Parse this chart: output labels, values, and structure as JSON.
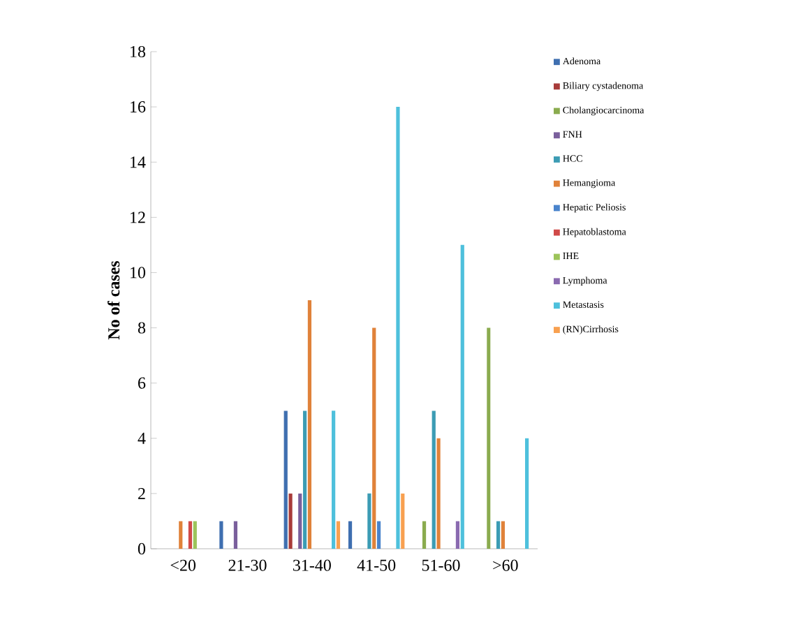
{
  "chart_data": {
    "type": "bar",
    "ylabel": "No of cases",
    "categories": [
      "<20",
      "21-30",
      "31-40",
      "41-50",
      "51-60",
      ">60"
    ],
    "ylim": [
      0,
      18
    ],
    "yticks": [
      0,
      2,
      4,
      6,
      8,
      10,
      12,
      14,
      16,
      18
    ],
    "grid": false,
    "legend": "right",
    "series": [
      {
        "name": "Adenoma",
        "color": "#3f6fb0",
        "values": [
          0,
          1,
          5,
          1,
          0,
          0
        ]
      },
      {
        "name": "Biliary cystadenoma",
        "color": "#a83c3a",
        "values": [
          0,
          0,
          2,
          0,
          0,
          0
        ]
      },
      {
        "name": "Cholangiocarcinoma",
        "color": "#8aab4e",
        "values": [
          0,
          0,
          0,
          0,
          1,
          8
        ]
      },
      {
        "name": "FNH",
        "color": "#7a5f9c",
        "values": [
          0,
          1,
          2,
          0,
          0,
          0
        ]
      },
      {
        "name": "HCC",
        "color": "#3c9cb4",
        "values": [
          0,
          0,
          5,
          2,
          5,
          1
        ]
      },
      {
        "name": "Hemangioma",
        "color": "#e0823a",
        "values": [
          1,
          0,
          9,
          8,
          4,
          1
        ]
      },
      {
        "name": "Hepatic Peliosis",
        "color": "#4a84cc",
        "values": [
          0,
          0,
          0,
          1,
          0,
          0
        ]
      },
      {
        "name": "Hepatoblastoma",
        "color": "#d04a48",
        "values": [
          1,
          0,
          0,
          0,
          0,
          0
        ]
      },
      {
        "name": "IHE",
        "color": "#9cc45a",
        "values": [
          1,
          0,
          0,
          0,
          0,
          0
        ]
      },
      {
        "name": "Lymphoma",
        "color": "#8a6ab0",
        "values": [
          0,
          0,
          0,
          0,
          1,
          0
        ]
      },
      {
        "name": "Metastasis",
        "color": "#4ec0dc",
        "values": [
          0,
          0,
          5,
          16,
          11,
          4
        ]
      },
      {
        "name": "(RN)Cirrhosis",
        "color": "#f8a050",
        "values": [
          0,
          0,
          1,
          2,
          0,
          0
        ]
      }
    ]
  }
}
